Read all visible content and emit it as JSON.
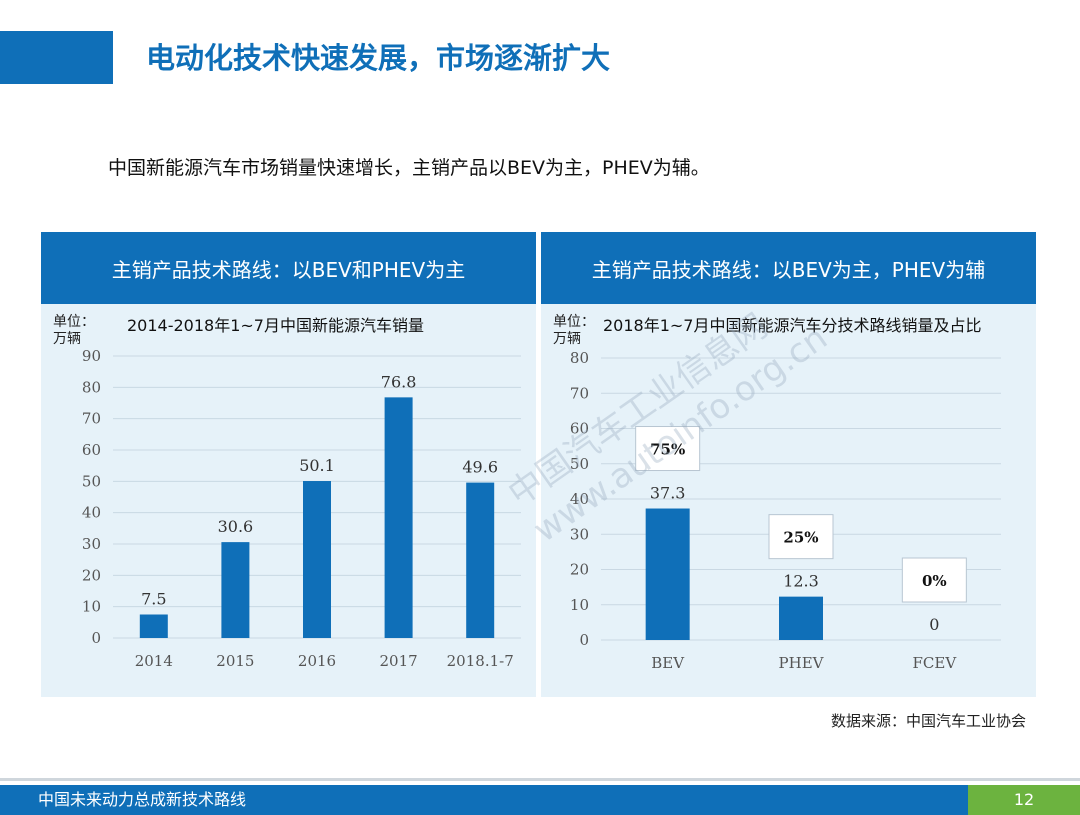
{
  "slide": {
    "title": "电动化技术快速发展，市场逐渐扩大",
    "subtitle": "中国新能源汽车市场销量快速增长，主销产品以BEV为主，PHEV为辅。",
    "source": "数据来源：中国汽车工业协会",
    "footer": "中国未来动力总成新技术路线",
    "page": "12",
    "watermark_line1": "中国汽车工业信息网",
    "watermark_line2": "www.autoinfo.org.cn"
  },
  "panels": [
    {
      "header": "主销产品技术路线：以BEV和PHEV为主",
      "unit_line1": "单位：",
      "unit_line2": "万辆"
    },
    {
      "header": "主销产品技术路线：以BEV为主，PHEV为辅",
      "unit_line1": "单位：",
      "unit_line2": "万辆"
    }
  ],
  "colors": {
    "primary": "#0f6fb8",
    "panel_bg": "#e6f2f9",
    "accent_green": "#6cb33f"
  },
  "chart_data": [
    {
      "type": "bar",
      "title": "2014-2018年1~7月中国新能源汽车销量",
      "categories": [
        "2014",
        "2015",
        "2016",
        "2017",
        "2018.1-7"
      ],
      "values": [
        7.5,
        30.6,
        50.1,
        76.8,
        49.6
      ],
      "value_labels": [
        "7.5",
        "30.6",
        "50.1",
        "76.8",
        "49.6"
      ],
      "yticks": [
        "0",
        "10",
        "20",
        "30",
        "40",
        "50",
        "60",
        "70",
        "80",
        "90"
      ],
      "ylim": [
        0,
        90
      ],
      "grid": true
    },
    {
      "type": "bar",
      "title": "2018年1~7月中国新能源汽车分技术路线销量及占比",
      "categories": [
        "BEV",
        "PHEV",
        "FCEV"
      ],
      "values": [
        37.3,
        12.3,
        0
      ],
      "value_labels": [
        "37.3",
        "12.3",
        "0"
      ],
      "shares": [
        "75%",
        "25%",
        "0%"
      ],
      "yticks": [
        "0",
        "10",
        "20",
        "30",
        "40",
        "50",
        "60",
        "70",
        "80"
      ],
      "ylim": [
        0,
        80
      ],
      "grid": true
    }
  ]
}
